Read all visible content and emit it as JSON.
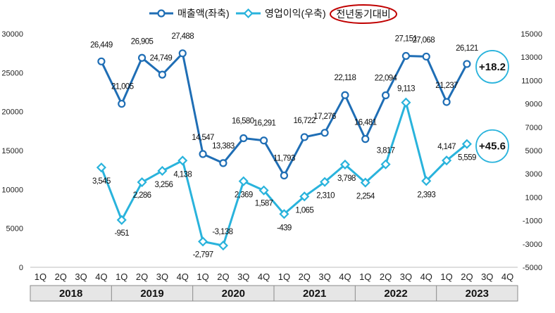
{
  "chart_data": {
    "type": "line",
    "categories": [
      "1Q",
      "2Q",
      "3Q",
      "4Q",
      "1Q",
      "2Q",
      "3Q",
      "4Q",
      "1Q",
      "2Q",
      "3Q",
      "4Q",
      "1Q",
      "2Q",
      "3Q",
      "4Q",
      "1Q",
      "2Q",
      "3Q",
      "4Q",
      "1Q",
      "2Q",
      "3Q",
      "4Q"
    ],
    "years": [
      "2018",
      "2019",
      "2020",
      "2021",
      "2022",
      "2023"
    ],
    "series": [
      {
        "name": "매출액(좌축)",
        "axis": "left",
        "color": "#1f6eb5",
        "marker": "circle",
        "values": [
          null,
          null,
          null,
          26449,
          21005,
          26905,
          24749,
          27488,
          14547,
          13383,
          16580,
          16291,
          11793,
          16722,
          17276,
          22118,
          16481,
          22094,
          27151,
          27068,
          21237,
          26121,
          null,
          null
        ],
        "labels": [
          null,
          null,
          null,
          "26,449",
          "21,005",
          "26,905",
          "24,749",
          "27,488",
          "14,547",
          "13,383",
          "16,580",
          "16,291",
          "11,793",
          "16,722",
          "17,276",
          "22,118",
          "16,481",
          "22,094",
          "27,151",
          "27,068",
          "21,237",
          "26,121",
          null,
          null
        ]
      },
      {
        "name": "영업이익(우축)",
        "axis": "right",
        "color": "#29b3dc",
        "marker": "diamond",
        "values": [
          null,
          null,
          null,
          3545,
          -951,
          2286,
          3256,
          4138,
          -2797,
          -3138,
          2369,
          1587,
          -439,
          1065,
          2310,
          3798,
          2254,
          3817,
          9113,
          2393,
          4147,
          5559,
          null,
          null
        ],
        "labels": [
          null,
          null,
          null,
          "3,545",
          "-951",
          "2,286",
          "3,256",
          "4,138",
          "-2,797",
          "-3,138",
          "2,369",
          "1,587",
          "-439",
          "1,065",
          "2,310",
          "3,798",
          "2,254",
          "3,817",
          "9,113",
          "2,393",
          "4,147",
          "5,559",
          null,
          null
        ]
      }
    ],
    "left_axis": {
      "min": 0,
      "max": 30000,
      "step": 5000,
      "ticks": [
        "0",
        "5000",
        "10000",
        "15000",
        "20000",
        "25000",
        "30000"
      ]
    },
    "right_axis": {
      "min": -5000,
      "max": 15000,
      "step": 2000,
      "ticks": [
        "-5000",
        "-3000",
        "-1000",
        "1000",
        "3000",
        "5000",
        "7000",
        "9000",
        "11000",
        "13000",
        "15000"
      ]
    },
    "legend": {
      "placement": "top-center",
      "highlight_label": "전년동기대비"
    },
    "yoy_badges": [
      {
        "series": "매출액(좌축)",
        "text": "+18.2"
      },
      {
        "series": "영업이익(우축)",
        "text": "+45.6"
      }
    ]
  }
}
